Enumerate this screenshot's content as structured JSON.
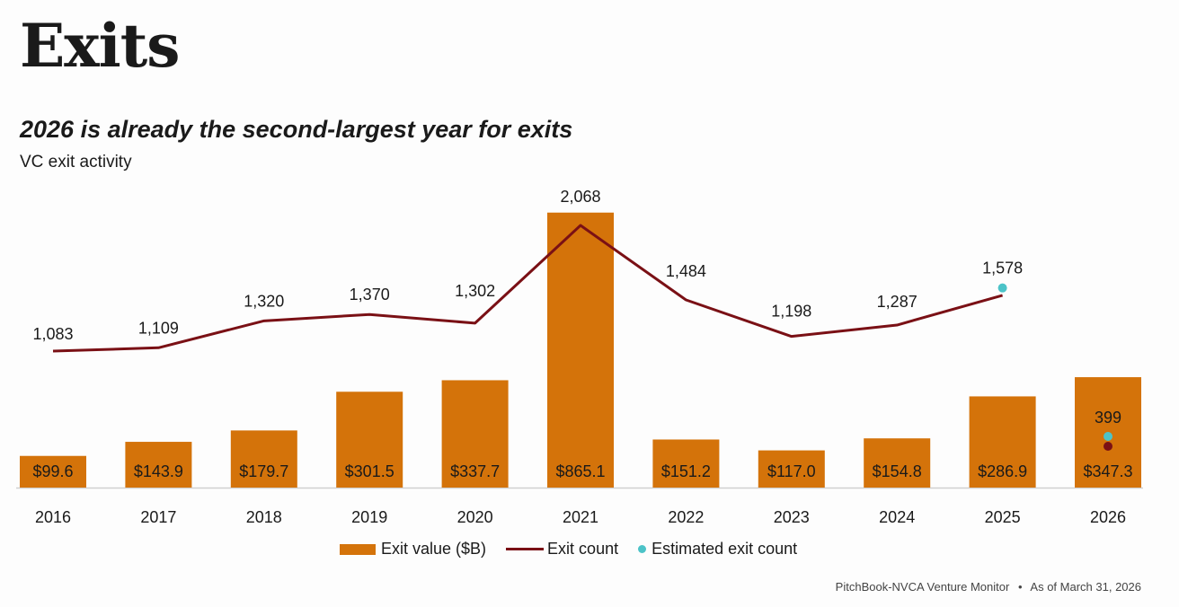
{
  "header": {
    "title": "Exits",
    "subtitle": "2026 is already the second-largest year for exits",
    "description": "VC exit activity"
  },
  "colors": {
    "bar": "#D4730A",
    "line": "#7A1015",
    "estimate": "#4CC3C8",
    "baseline": "#cfcfcf"
  },
  "chart_data": {
    "type": "bar",
    "title": "2026 is already the second-largest year for exits",
    "subtitle": "VC exit activity",
    "xlabel": "",
    "ylabel": "",
    "categories": [
      "2016",
      "2017",
      "2018",
      "2019",
      "2020",
      "2021",
      "2022",
      "2023",
      "2024",
      "2025",
      "2026"
    ],
    "series": [
      {
        "name": "Exit value ($B)",
        "type": "bar",
        "values": [
          99.6,
          143.9,
          179.7,
          301.5,
          337.7,
          865.1,
          151.2,
          117.0,
          154.8,
          286.9,
          347.3
        ],
        "labels": [
          "$99.6",
          "$143.9",
          "$179.7",
          "$301.5",
          "$337.7",
          "$865.1",
          "$151.2",
          "$117.0",
          "$154.8",
          "$286.9",
          "$347.3"
        ]
      },
      {
        "name": "Exit count",
        "type": "line",
        "values": [
          1083,
          1109,
          1320,
          1370,
          1302,
          2068,
          1484,
          1198,
          1287,
          1520,
          399
        ],
        "labels": [
          "1,083",
          "1,109",
          "1,320",
          "1,370",
          "1,302",
          "2,068",
          "1,484",
          "1,198",
          "1,287",
          "",
          "399"
        ]
      },
      {
        "name": "Estimated exit count",
        "type": "scatter",
        "values": [
          null,
          null,
          null,
          null,
          null,
          null,
          null,
          null,
          null,
          1578,
          450
        ],
        "labels": [
          "",
          "",
          "",
          "",
          "",
          "",
          "",
          "",
          "",
          "1,578",
          ""
        ]
      }
    ],
    "legend": [
      "Exit value ($B)",
      "Exit count",
      "Estimated exit count"
    ],
    "legend_position": "bottom",
    "grid": false
  },
  "footer": {
    "source": "PitchBook-NVCA Venture Monitor",
    "separator": "•",
    "date": "As of March 31, 2026"
  }
}
